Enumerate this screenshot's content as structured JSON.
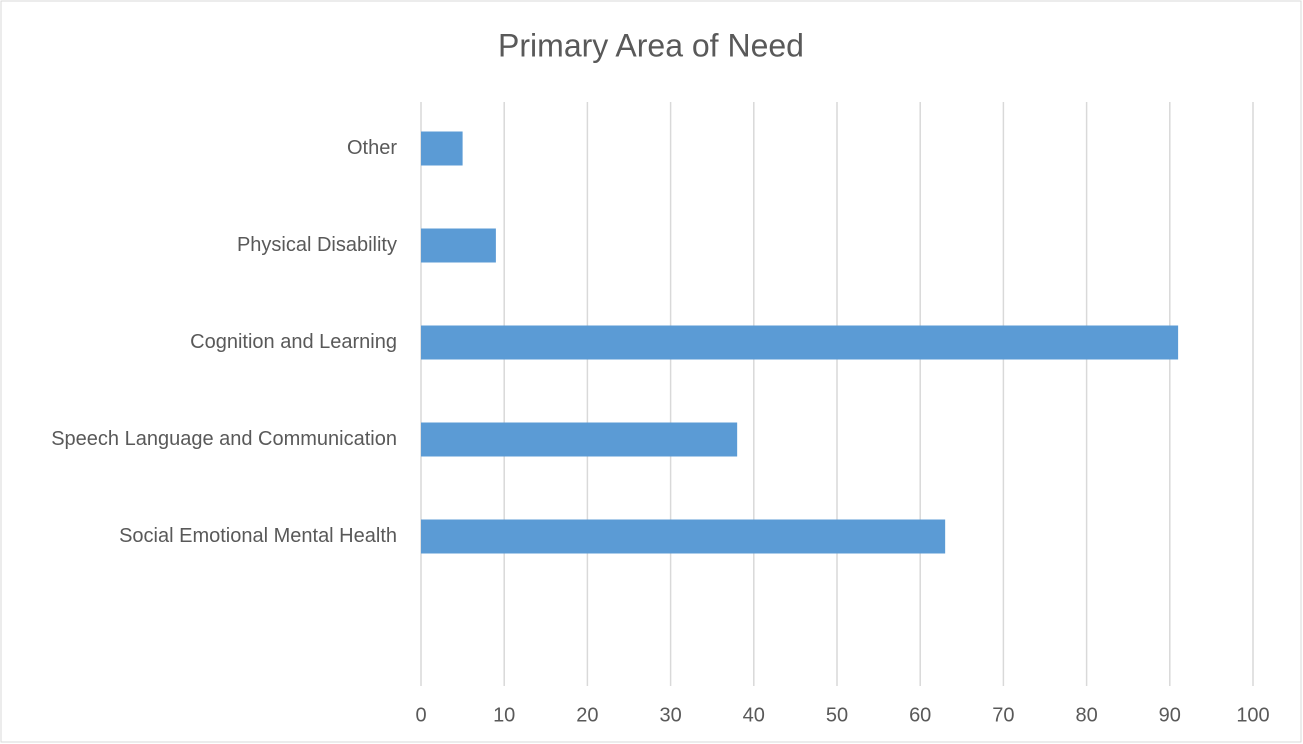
{
  "chart_data": {
    "type": "bar",
    "orientation": "horizontal",
    "title": "Primary Area of Need",
    "categories": [
      "Other",
      "Physical Disability",
      "Cognition and Learning",
      "Speech Language and Communication",
      "Social Emotional Mental Health",
      null
    ],
    "values": [
      5,
      9,
      91,
      38,
      63,
      null
    ],
    "color": "#5b9bd5",
    "xlim": [
      0,
      100
    ],
    "xticks": [
      0,
      10,
      20,
      30,
      40,
      50,
      60,
      70,
      80,
      90,
      100
    ],
    "grid": true
  }
}
